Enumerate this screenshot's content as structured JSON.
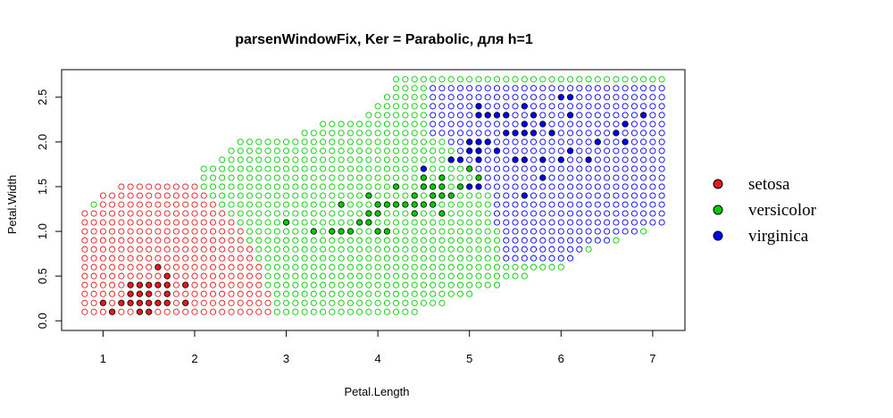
{
  "chart_data": {
    "type": "scatter",
    "title": "parsenWindowFix, Ker = Parabolic, для h=1",
    "xlabel": "Petal.Length",
    "ylabel": "Petal.Width",
    "xlim": [
      0.8,
      7.1
    ],
    "ylim": [
      0.0,
      2.7
    ],
    "xticks": [
      1,
      2,
      3,
      4,
      5,
      6,
      7
    ],
    "yticks": [
      0.0,
      0.5,
      1.0,
      1.5,
      2.0,
      2.5
    ],
    "xtick_labels": [
      "1",
      "2",
      "3",
      "4",
      "5",
      "6",
      "7"
    ],
    "ytick_labels": [
      "0.0",
      "0.5",
      "1.0",
      "1.5",
      "2.0",
      "2.5"
    ],
    "grid": false,
    "legend_position": "right",
    "classification_grid": {
      "x_start": 0.8,
      "x_step": 0.1,
      "x_count": 64,
      "y_start": 0.1,
      "y_step": 0.1,
      "y_count": 27,
      "setosa_region_x_ceiling": [
        {
          "x_from": 0.8,
          "x_to": 0.9,
          "ymax": 1.2
        },
        {
          "x_from": 1.0,
          "x_to": 1.1,
          "ymax": 1.4
        },
        {
          "x_from": 1.2,
          "x_to": 2.0,
          "ymax": 1.5
        },
        {
          "x_from": 2.1,
          "x_to": 2.1,
          "ymax": 1.4
        },
        {
          "x_from": 2.2,
          "x_to": 2.2,
          "ymax": 1.3
        },
        {
          "x_from": 2.3,
          "x_to": 2.3,
          "ymax": 1.2
        },
        {
          "x_from": 2.4,
          "x_to": 2.4,
          "ymax": 1.1
        },
        {
          "x_from": 2.5,
          "x_to": 2.5,
          "ymax": 1.0
        },
        {
          "x_from": 2.6,
          "x_to": 2.6,
          "ymax": 0.8
        },
        {
          "x_from": 2.7,
          "x_to": 2.7,
          "ymax": 0.6
        },
        {
          "x_from": 2.8,
          "x_to": 2.8,
          "ymax": 0.3
        }
      ],
      "upper_boundary": [
        [
          0.8,
          1.2
        ],
        [
          1.0,
          1.4
        ],
        [
          1.2,
          1.5
        ],
        [
          2.0,
          1.5
        ],
        [
          2.1,
          1.7
        ],
        [
          2.3,
          1.8
        ],
        [
          2.5,
          2.0
        ],
        [
          3.2,
          2.1
        ],
        [
          3.4,
          2.2
        ],
        [
          3.9,
          2.3
        ],
        [
          4.0,
          2.4
        ],
        [
          4.1,
          2.5
        ],
        [
          4.2,
          2.7
        ],
        [
          7.1,
          2.7
        ]
      ],
      "lower_boundary": [
        [
          4.4,
          0.1
        ],
        [
          4.7,
          0.2
        ],
        [
          5.0,
          0.3
        ],
        [
          5.3,
          0.4
        ],
        [
          5.6,
          0.5
        ],
        [
          6.0,
          0.6
        ],
        [
          6.1,
          0.7
        ],
        [
          6.3,
          0.8
        ],
        [
          6.6,
          0.9
        ],
        [
          6.9,
          1.0
        ],
        [
          7.0,
          1.1
        ],
        [
          7.1,
          1.1
        ]
      ],
      "virginica_boundary": [
        [
          4.6,
          2.7
        ],
        [
          4.6,
          2.1
        ],
        [
          4.9,
          1.9
        ],
        [
          5.2,
          1.5
        ],
        [
          5.4,
          0.7
        ],
        [
          6.0,
          0.6
        ],
        [
          6.3,
          0.8
        ],
        [
          6.6,
          0.9
        ],
        [
          6.9,
          1.0
        ],
        [
          7.1,
          1.1
        ]
      ]
    },
    "series": [
      {
        "name": "setosa",
        "color": "#e41a1c",
        "points": [
          [
            1.0,
            0.2
          ],
          [
            1.1,
            0.1
          ],
          [
            1.2,
            0.2
          ],
          [
            1.3,
            0.2
          ],
          [
            1.3,
            0.3
          ],
          [
            1.3,
            0.4
          ],
          [
            1.4,
            0.1
          ],
          [
            1.4,
            0.2
          ],
          [
            1.4,
            0.3
          ],
          [
            1.4,
            0.4
          ],
          [
            1.5,
            0.1
          ],
          [
            1.5,
            0.2
          ],
          [
            1.5,
            0.3
          ],
          [
            1.5,
            0.4
          ],
          [
            1.6,
            0.2
          ],
          [
            1.6,
            0.4
          ],
          [
            1.6,
            0.6
          ],
          [
            1.7,
            0.2
          ],
          [
            1.7,
            0.3
          ],
          [
            1.7,
            0.4
          ],
          [
            1.7,
            0.5
          ],
          [
            1.9,
            0.2
          ],
          [
            1.9,
            0.4
          ]
        ]
      },
      {
        "name": "versicolor",
        "color": "#00cc00",
        "points": [
          [
            3.0,
            1.1
          ],
          [
            3.3,
            1.0
          ],
          [
            3.5,
            1.0
          ],
          [
            3.6,
            1.0
          ],
          [
            3.6,
            1.3
          ],
          [
            3.7,
            1.0
          ],
          [
            3.8,
            1.1
          ],
          [
            3.9,
            1.1
          ],
          [
            3.9,
            1.2
          ],
          [
            3.9,
            1.4
          ],
          [
            4.0,
            1.0
          ],
          [
            4.0,
            1.2
          ],
          [
            4.0,
            1.3
          ],
          [
            4.1,
            1.0
          ],
          [
            4.1,
            1.3
          ],
          [
            4.2,
            1.3
          ],
          [
            4.2,
            1.5
          ],
          [
            4.3,
            1.3
          ],
          [
            4.4,
            1.2
          ],
          [
            4.4,
            1.3
          ],
          [
            4.4,
            1.4
          ],
          [
            4.5,
            1.3
          ],
          [
            4.5,
            1.5
          ],
          [
            4.5,
            1.6
          ],
          [
            4.6,
            1.3
          ],
          [
            4.6,
            1.4
          ],
          [
            4.6,
            1.5
          ],
          [
            4.7,
            1.2
          ],
          [
            4.7,
            1.4
          ],
          [
            4.7,
            1.5
          ],
          [
            4.7,
            1.6
          ],
          [
            4.8,
            1.4
          ],
          [
            4.8,
            1.8
          ],
          [
            4.9,
            1.5
          ],
          [
            5.0,
            1.7
          ],
          [
            5.1,
            1.6
          ]
        ]
      },
      {
        "name": "virginica",
        "color": "#0000ff",
        "points": [
          [
            4.5,
            1.7
          ],
          [
            4.8,
            1.8
          ],
          [
            4.9,
            1.8
          ],
          [
            5.0,
            1.5
          ],
          [
            5.0,
            1.9
          ],
          [
            5.0,
            2.0
          ],
          [
            5.1,
            1.5
          ],
          [
            5.1,
            1.8
          ],
          [
            5.1,
            1.9
          ],
          [
            5.1,
            2.0
          ],
          [
            5.1,
            2.3
          ],
          [
            5.1,
            2.4
          ],
          [
            5.2,
            2.0
          ],
          [
            5.2,
            2.3
          ],
          [
            5.3,
            1.9
          ],
          [
            5.3,
            2.3
          ],
          [
            5.4,
            2.1
          ],
          [
            5.4,
            2.3
          ],
          [
            5.5,
            1.8
          ],
          [
            5.5,
            2.1
          ],
          [
            5.6,
            1.4
          ],
          [
            5.6,
            1.8
          ],
          [
            5.6,
            2.1
          ],
          [
            5.6,
            2.2
          ],
          [
            5.6,
            2.4
          ],
          [
            5.7,
            2.1
          ],
          [
            5.7,
            2.3
          ],
          [
            5.8,
            1.6
          ],
          [
            5.8,
            1.8
          ],
          [
            5.8,
            2.2
          ],
          [
            5.9,
            2.1
          ],
          [
            6.0,
            1.8
          ],
          [
            6.0,
            2.5
          ],
          [
            6.1,
            1.9
          ],
          [
            6.1,
            2.3
          ],
          [
            6.1,
            2.5
          ],
          [
            6.3,
            1.8
          ],
          [
            6.4,
            2.0
          ],
          [
            6.6,
            2.1
          ],
          [
            6.7,
            2.0
          ],
          [
            6.7,
            2.2
          ],
          [
            6.9,
            2.3
          ]
        ]
      }
    ],
    "legend": [
      {
        "label": "setosa",
        "color": "#e41a1c"
      },
      {
        "label": "versicolor",
        "color": "#00cc00"
      },
      {
        "label": "virginica",
        "color": "#0000ff"
      }
    ]
  }
}
